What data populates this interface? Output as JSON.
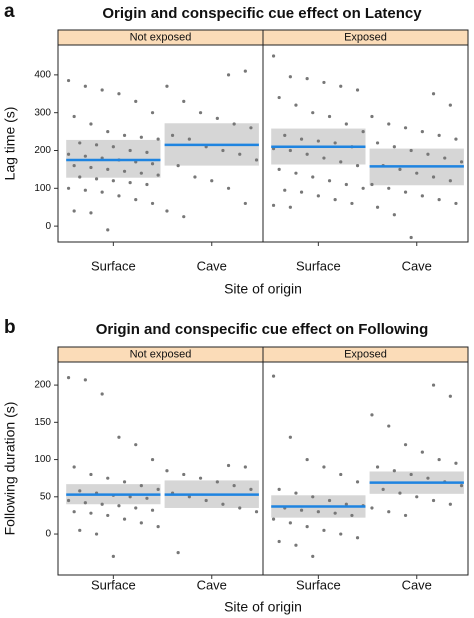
{
  "chart_data": [
    {
      "type": "strip",
      "panel": "a",
      "title": "Origin and conspecific cue effect on Latency",
      "y_label": "Lag time (s)",
      "x_label": "Site of origin",
      "ylim": [
        -42,
        479
      ],
      "yticks": [
        0,
        100,
        200,
        300,
        400
      ],
      "point_color": "#777777",
      "line_color": "#1f84e0",
      "band_color": "#d6d6d6",
      "strip_color": "#fbdcb8",
      "facets": [
        {
          "name": "Not exposed",
          "categories": [
            "Surface",
            "Cave"
          ],
          "means": [
            175,
            215
          ],
          "ci_low": [
            128,
            160
          ],
          "ci_high": [
            228,
            272
          ],
          "points": [
            [
              385,
              370,
              360,
              350,
              330,
              300,
              290,
              270,
              250,
              240,
              235,
              230,
              220,
              215,
              210,
              200,
              195,
              190,
              185,
              180,
              175,
              170,
              165,
              160,
              155,
              150,
              145,
              140,
              135,
              130,
              125,
              120,
              115,
              110,
              100,
              95,
              90,
              80,
              70,
              60,
              40,
              35,
              -10
            ],
            [
              400,
              410,
              370,
              330,
              300,
              285,
              270,
              260,
              240,
              230,
              210,
              200,
              190,
              175,
              160,
              130,
              120,
              100,
              60,
              40,
              25
            ]
          ]
        },
        {
          "name": "Exposed",
          "categories": [
            "Surface",
            "Cave"
          ],
          "means": [
            210,
            158
          ],
          "ci_low": [
            163,
            108
          ],
          "ci_high": [
            258,
            205
          ],
          "points": [
            [
              450,
              395,
              390,
              380,
              370,
              360,
              340,
              320,
              300,
              290,
              270,
              250,
              240,
              230,
              225,
              220,
              210,
              205,
              200,
              190,
              180,
              170,
              160,
              150,
              140,
              130,
              120,
              110,
              100,
              95,
              90,
              80,
              70,
              60,
              55,
              50
            ],
            [
              350,
              320,
              290,
              270,
              260,
              250,
              240,
              230,
              220,
              210,
              200,
              190,
              180,
              170,
              160,
              150,
              140,
              130,
              120,
              110,
              100,
              90,
              80,
              70,
              60,
              50,
              30,
              -30
            ]
          ]
        }
      ]
    },
    {
      "type": "strip",
      "panel": "b",
      "title": "Origin and conspecific cue effect on Following",
      "y_label": "Following duration (s)",
      "x_label": "Site of origin",
      "ylim": [
        -55,
        231
      ],
      "yticks": [
        0,
        50,
        100,
        150,
        200
      ],
      "point_color": "#777777",
      "line_color": "#1f84e0",
      "band_color": "#d6d6d6",
      "strip_color": "#fbdcb8",
      "facets": [
        {
          "name": "Not exposed",
          "categories": [
            "Surface",
            "Cave"
          ],
          "means": [
            53,
            53
          ],
          "ci_low": [
            40,
            35
          ],
          "ci_high": [
            67,
            72
          ],
          "points": [
            [
              210,
              207,
              188,
              130,
              120,
              100,
              90,
              80,
              75,
              70,
              65,
              60,
              58,
              55,
              52,
              50,
              48,
              45,
              42,
              40,
              38,
              35,
              32,
              30,
              28,
              25,
              20,
              15,
              10,
              5,
              0,
              -30
            ],
            [
              92,
              90,
              85,
              80,
              75,
              70,
              65,
              60,
              55,
              50,
              45,
              40,
              35,
              30,
              -25
            ]
          ]
        },
        {
          "name": "Exposed",
          "categories": [
            "Surface",
            "Cave"
          ],
          "means": [
            37,
            69
          ],
          "ci_low": [
            22,
            54
          ],
          "ci_high": [
            52,
            84
          ],
          "points": [
            [
              212,
              130,
              100,
              90,
              80,
              70,
              60,
              55,
              50,
              45,
              40,
              38,
              35,
              32,
              30,
              28,
              25,
              20,
              15,
              10,
              5,
              0,
              -5,
              -10,
              -15,
              -30
            ],
            [
              200,
              185,
              160,
              145,
              120,
              110,
              100,
              95,
              90,
              85,
              80,
              75,
              70,
              65,
              60,
              55,
              50,
              45,
              40,
              35,
              30,
              25
            ]
          ]
        }
      ]
    }
  ]
}
